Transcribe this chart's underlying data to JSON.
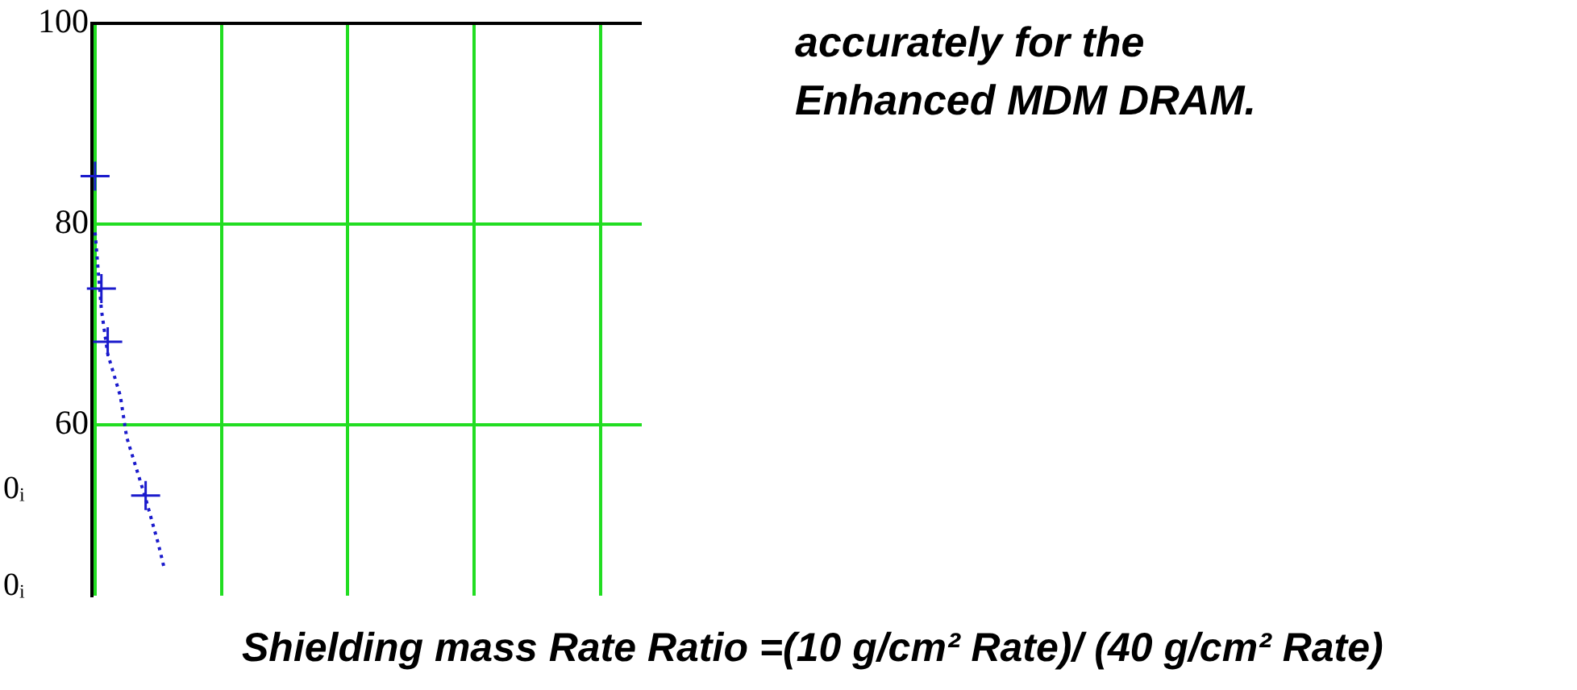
{
  "chart_data": {
    "type": "scatter",
    "xlabel": "Shielding mass Rate Ratio =(10 g/cm² Rate)/ (40 g/cm² Rate)",
    "annotations": [
      "accurately for the\nEnhanced MDM DRAM.",
      "0ᵢ",
      "0ᵢ"
    ],
    "categories": [
      null,
      null,
      null,
      null,
      null,
      null,
      null,
      null,
      null,
      null,
      null,
      null,
      null,
      null,
      null,
      null,
      null,
      null,
      null,
      null,
      null,
      null,
      null,
      null,
      null,
      null,
      null,
      null,
      null,
      null,
      null,
      null,
      null,
      null,
      null,
      null,
      null,
      null,
      null,
      null,
      null,
      null,
      null,
      null,
      null,
      null,
      null,
      null,
      null,
      null,
      null,
      null,
      null,
      null,
      null,
      null,
      null,
      null,
      null,
      null,
      null,
      null,
      null,
      null,
      null,
      null,
      null,
      null,
      null,
      null,
      null,
      null,
      null,
      null,
      null,
      null,
      null,
      null,
      null,
      null,
      null,
      null,
      null,
      null,
      null,
      null,
      null
    ],
    "ylim": [
      43,
      100
    ],
    "yticks": [
      60,
      80,
      100
    ],
    "grid": true,
    "series": [
      {
        "type": "scatter",
        "color": "#1a1acc",
        "marker": "cross",
        "values": [
          84.8,
          73.6,
          68.3,
          null,
          null,
          null,
          null,
          null,
          53,
          null,
          null,
          null,
          null,
          null,
          null,
          null,
          null,
          null,
          null,
          null,
          null,
          null,
          null,
          null,
          null,
          null,
          null,
          null,
          null,
          null,
          null,
          null,
          null,
          null,
          null,
          null,
          null,
          null,
          null,
          null,
          null,
          null,
          null,
          null,
          null,
          null,
          null,
          null,
          null,
          null,
          null,
          null,
          null,
          null,
          null,
          null,
          null,
          null,
          null,
          null,
          null,
          null,
          null,
          null,
          null,
          null,
          null,
          null,
          null,
          null,
          null,
          null,
          null,
          null,
          null,
          null,
          null,
          null,
          null,
          null,
          null,
          null,
          null,
          null,
          null,
          null,
          null
        ]
      },
      {
        "type": "line",
        "color": "#1a1acc",
        "marker": "none",
        "line_style": "dotted",
        "values": [
          79.2,
          71.5,
          67.1,
          null,
          62.9,
          58.8,
          null,
          null,
          52.7,
          null,
          48.2,
          45.6,
          null,
          null,
          null,
          null,
          null,
          null,
          null,
          null,
          null,
          null,
          null,
          null,
          null,
          null,
          null,
          null,
          null,
          null,
          null,
          null,
          null,
          null,
          null,
          null,
          null,
          null,
          null,
          null,
          null,
          null,
          null,
          null,
          null,
          null,
          null,
          null,
          null,
          null,
          null,
          null,
          null,
          null,
          null,
          null,
          null,
          null,
          null,
          null,
          null,
          null,
          null,
          null,
          null,
          null,
          null,
          null,
          null,
          null,
          null,
          null,
          null,
          null,
          null,
          null,
          null,
          null,
          null,
          null,
          null,
          null,
          null,
          null,
          null,
          null,
          null
        ]
      }
    ]
  }
}
